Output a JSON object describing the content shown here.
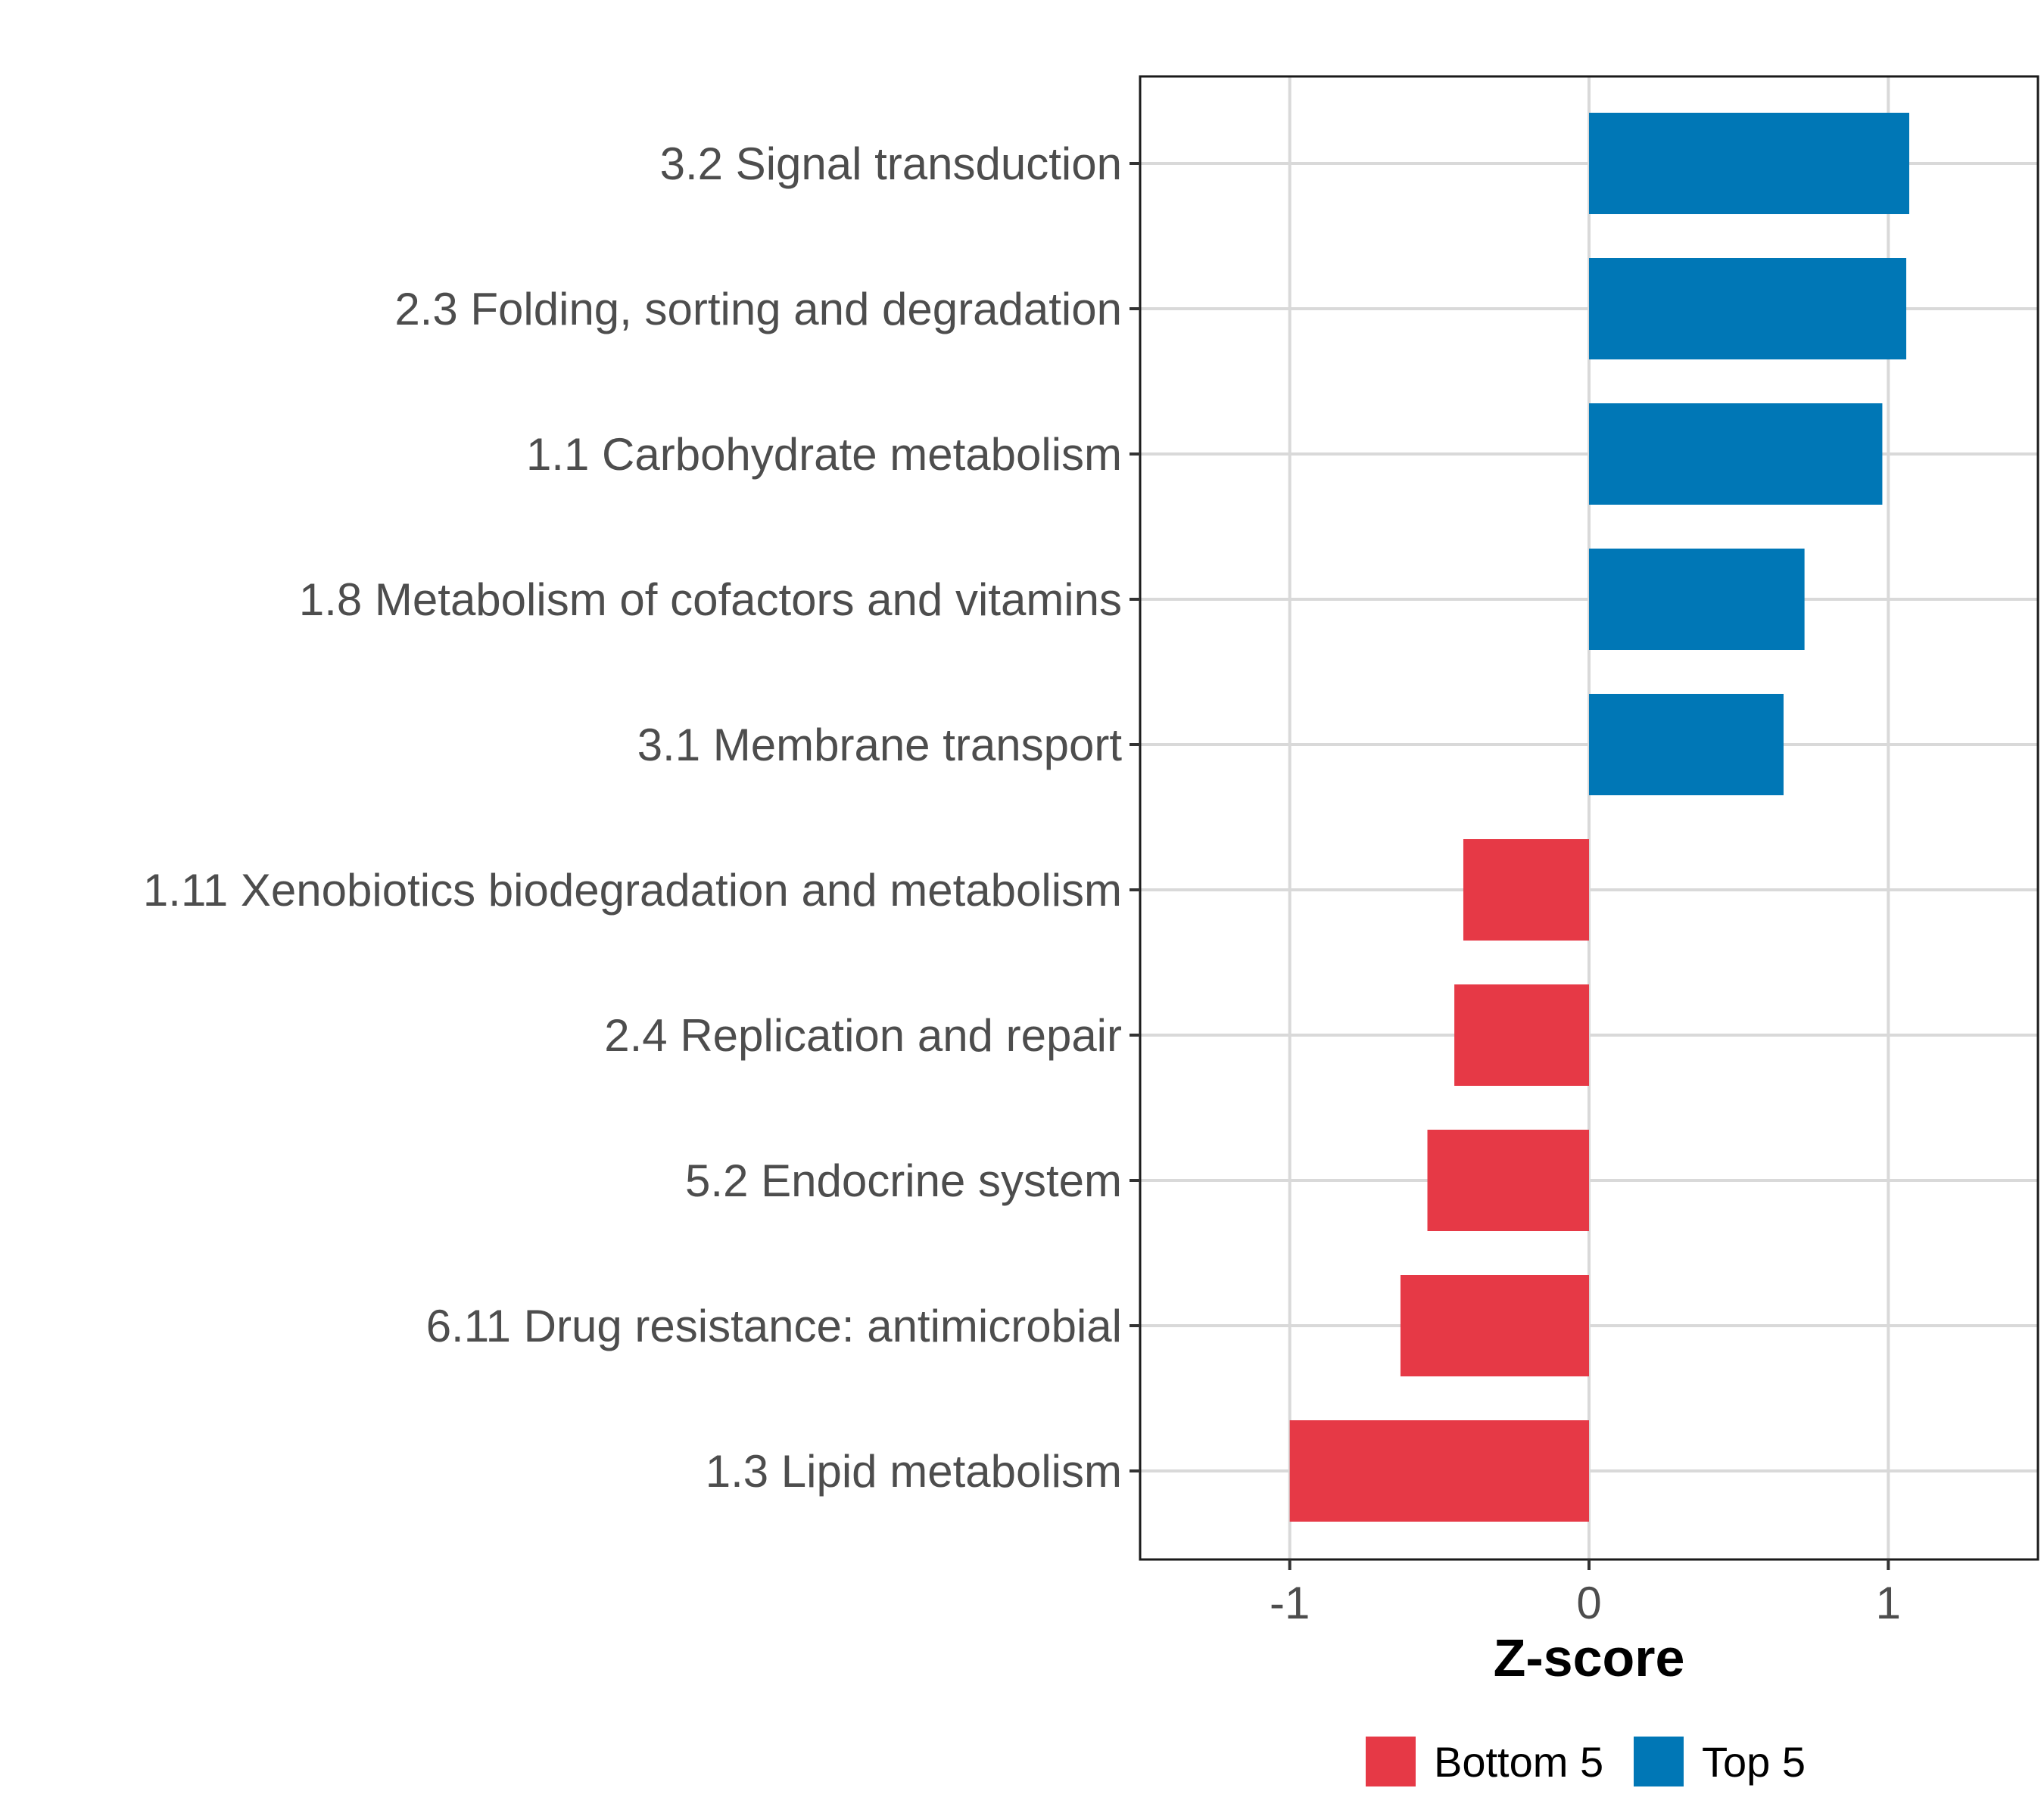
{
  "chart_data": {
    "type": "bar",
    "orientation": "horizontal",
    "title": "",
    "xlabel": "Z-score",
    "ylabel": "",
    "xlim": [
      -1.5,
      1.5
    ],
    "xticks": [
      -1,
      0,
      1
    ],
    "xtick_labels": [
      "-1",
      "0",
      "1"
    ],
    "grid": true,
    "legend_position": "bottom",
    "categories": [
      "3.2 Signal transduction",
      "2.3 Folding, sorting and degradation",
      "1.1 Carbohydrate metabolism",
      "1.8 Metabolism of cofactors and vitamins",
      "3.1 Membrane transport",
      "1.11 Xenobiotics biodegradation and metabolism",
      "2.4 Replication and repair",
      "5.2 Endocrine system",
      "6.11 Drug resistance: antimicrobial",
      "1.3 Lipid metabolism"
    ],
    "values": [
      1.07,
      1.06,
      0.98,
      0.72,
      0.65,
      -0.42,
      -0.45,
      -0.54,
      -0.63,
      -1.0
    ],
    "groups": [
      "Top 5",
      "Top 5",
      "Top 5",
      "Top 5",
      "Top 5",
      "Bottom 5",
      "Bottom 5",
      "Bottom 5",
      "Bottom 5",
      "Bottom 5"
    ],
    "legend": [
      {
        "name": "Bottom 5",
        "color": "#e63946"
      },
      {
        "name": "Top 5",
        "color": "#0077b6"
      }
    ]
  }
}
